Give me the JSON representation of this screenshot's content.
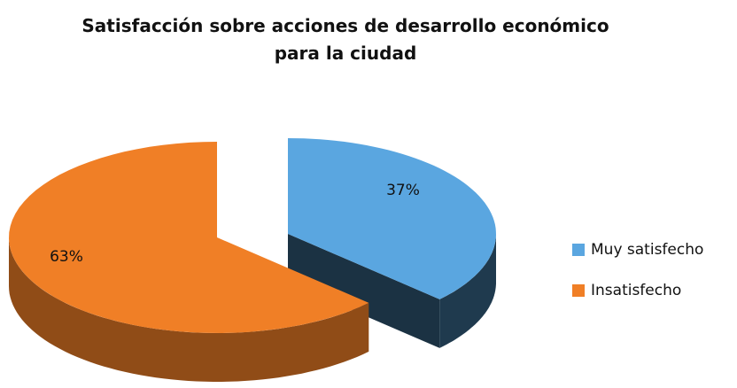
{
  "chart_data": {
    "type": "pie3d",
    "title": "Satisfacción sobre acciones de desarrollo económico para la ciudad",
    "categories": [
      "Muy satisfecho",
      "Insatisfecho"
    ],
    "values": [
      37,
      63
    ],
    "value_labels": [
      "37%",
      "63%"
    ],
    "colors": [
      "#5aa6e0",
      "#f07f26"
    ],
    "legend": "right"
  }
}
